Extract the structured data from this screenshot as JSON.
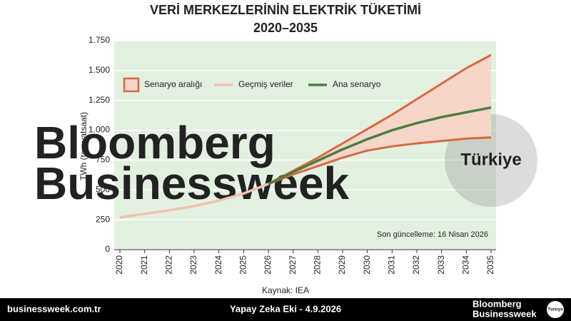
{
  "chart_data": {
    "type": "line",
    "title": "VERİ MERKEZLERİNİN ELEKTRİK TÜKETİMİ",
    "subtitle": "2020–2035",
    "y_label": "TWh (teravatsaat)",
    "source": "Kaynak: IEA",
    "annotation": "Son güncelleme: 16 Nisan 2026",
    "watermark": [
      "Bloomberg",
      "Businessweek",
      "Türkiye"
    ],
    "categories": [
      "2020",
      "2021",
      "2022",
      "2023",
      "2024",
      "2025",
      "2026",
      "2027",
      "2028",
      "2029",
      "2030",
      "2031",
      "2032",
      "2033",
      "2034",
      "2035"
    ],
    "ylim": [
      0,
      1750
    ],
    "yticks": [
      0,
      250,
      500,
      750,
      {
        "value": 1000,
        "label": "1.000"
      },
      {
        "value": 1250,
        "label": "1.250"
      },
      {
        "value": 1500,
        "label": "1.500"
      },
      {
        "value": 1750,
        "label": "1.750"
      }
    ],
    "grid": true,
    "range": {
      "name": "Senaryo aralığı",
      "color": "#d9693f",
      "fill": "#f6d6c9",
      "high": [
        null,
        null,
        null,
        null,
        null,
        470,
        550,
        660,
        770,
        890,
        1010,
        1130,
        1260,
        1390,
        1520,
        1630
      ],
      "low": [
        null,
        null,
        null,
        null,
        null,
        470,
        550,
        630,
        700,
        770,
        830,
        865,
        890,
        910,
        930,
        940
      ]
    },
    "series": [
      {
        "name": "Geçmiş veriler",
        "color": "#f0c2ad",
        "values": [
          270,
          300,
          330,
          365,
          410,
          470,
          550,
          null,
          null,
          null,
          null,
          null,
          null,
          null,
          null,
          null
        ]
      },
      {
        "name": "Ana senaryo",
        "color": "#4a7f3f",
        "values": [
          null,
          null,
          null,
          null,
          null,
          null,
          550,
          650,
          745,
          840,
          925,
          1000,
          1060,
          1110,
          1150,
          1190
        ]
      }
    ]
  },
  "footer": {
    "site": "businessweek.com.tr",
    "edition": "Yapay Zeka Eki - 4.9.2026",
    "logo": [
      "Bloomberg",
      "Businessweek"
    ],
    "logo_badge": "Türkiye"
  }
}
